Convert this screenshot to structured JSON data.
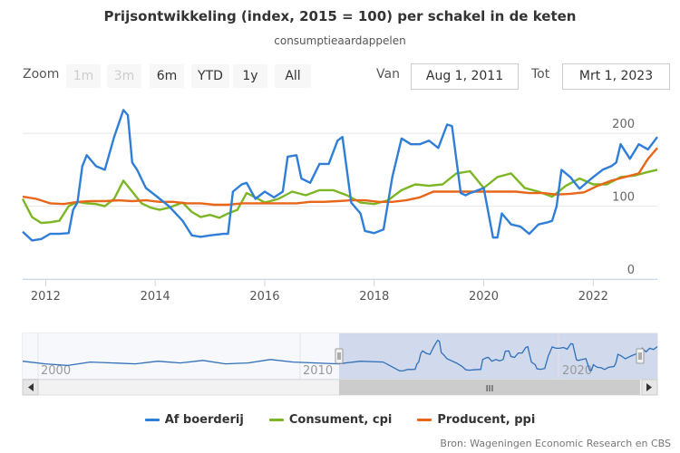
{
  "title": "Prijsontwikkeling (index, 2015 = 100) per schakel in de keten",
  "subtitle": "consumptieaardappelen",
  "range_selector": {
    "zoom_label": "Zoom",
    "buttons": [
      {
        "label": "1m",
        "enabled": false
      },
      {
        "label": "3m",
        "enabled": false
      },
      {
        "label": "6m",
        "enabled": true
      },
      {
        "label": "YTD",
        "enabled": true
      },
      {
        "label": "1y",
        "enabled": true
      },
      {
        "label": "All",
        "enabled": true
      }
    ],
    "from_label": "Van",
    "from_value": "Aug 1, 2011",
    "to_label": "Tot",
    "to_value": "Mrt 1, 2023"
  },
  "navigator": {
    "labels": [
      "2000",
      "2010",
      "2020"
    ],
    "scroll_glyph": "III"
  },
  "credits": "Bron: Wageningen Economic Research en CBS",
  "chart_data": {
    "type": "line",
    "x_type": "year",
    "xlim": [
      2011.58,
      2023.17
    ],
    "ylim": [
      0,
      240
    ],
    "yticks": [
      0,
      100,
      200
    ],
    "xticks": [
      2012,
      2014,
      2016,
      2018,
      2020,
      2022
    ],
    "grid": true,
    "legend_position": "bottom",
    "colors": {
      "accent_navigator": "#c9d3ea"
    },
    "series": [
      {
        "name": "Af boerderij",
        "color": "#2f7ed8",
        "x": [
          2011.58,
          2011.75,
          2011.92,
          2012.08,
          2012.25,
          2012.42,
          2012.5,
          2012.58,
          2012.67,
          2012.75,
          2012.92,
          2013.08,
          2013.25,
          2013.42,
          2013.5,
          2013.58,
          2013.67,
          2013.83,
          2014.0,
          2014.25,
          2014.5,
          2014.67,
          2014.83,
          2015.0,
          2015.25,
          2015.33,
          2015.42,
          2015.58,
          2015.67,
          2015.83,
          2016.0,
          2016.17,
          2016.33,
          2016.42,
          2016.58,
          2016.67,
          2016.83,
          2017.0,
          2017.17,
          2017.33,
          2017.42,
          2017.58,
          2017.75,
          2017.83,
          2018.0,
          2018.17,
          2018.33,
          2018.5,
          2018.67,
          2018.83,
          2019.0,
          2019.17,
          2019.33,
          2019.42,
          2019.58,
          2019.67,
          2019.75,
          2019.83,
          2020.0,
          2020.17,
          2020.25,
          2020.33,
          2020.5,
          2020.67,
          2020.83,
          2021.0,
          2021.17,
          2021.25,
          2021.33,
          2021.42,
          2021.58,
          2021.75,
          2021.92,
          2022.0,
          2022.17,
          2022.33,
          2022.42,
          2022.5,
          2022.67,
          2022.83,
          2023.0,
          2023.17
        ],
        "values": [
          65,
          53,
          55,
          62,
          62,
          63,
          95,
          105,
          155,
          170,
          155,
          150,
          195,
          232,
          225,
          160,
          150,
          125,
          115,
          100,
          80,
          60,
          58,
          60,
          62,
          62,
          120,
          130,
          132,
          110,
          120,
          112,
          120,
          168,
          170,
          138,
          132,
          158,
          158,
          190,
          195,
          105,
          90,
          66,
          63,
          68,
          140,
          193,
          185,
          185,
          190,
          180,
          212,
          210,
          118,
          115,
          118,
          120,
          125,
          57,
          57,
          90,
          75,
          72,
          62,
          75,
          78,
          80,
          100,
          150,
          140,
          124,
          135,
          140,
          150,
          155,
          160,
          185,
          165,
          185,
          178,
          195
        ]
      },
      {
        "name": "Consument, cpi",
        "color": "#7cb624",
        "x": [
          2011.58,
          2011.75,
          2011.92,
          2012.08,
          2012.25,
          2012.42,
          2012.58,
          2012.75,
          2012.92,
          2013.08,
          2013.25,
          2013.42,
          2013.58,
          2013.75,
          2013.92,
          2014.08,
          2014.25,
          2014.5,
          2014.67,
          2014.83,
          2015.0,
          2015.17,
          2015.33,
          2015.5,
          2015.67,
          2015.83,
          2016.0,
          2016.25,
          2016.5,
          2016.75,
          2017.0,
          2017.25,
          2017.5,
          2017.75,
          2018.0,
          2018.25,
          2018.5,
          2018.75,
          2019.0,
          2019.25,
          2019.5,
          2019.75,
          2020.0,
          2020.25,
          2020.5,
          2020.75,
          2021.0,
          2021.25,
          2021.5,
          2021.75,
          2022.0,
          2022.25,
          2022.5,
          2022.75,
          2023.0,
          2023.17
        ],
        "values": [
          110,
          85,
          77,
          78,
          80,
          100,
          106,
          104,
          103,
          100,
          110,
          135,
          120,
          104,
          98,
          95,
          98,
          105,
          92,
          85,
          88,
          84,
          90,
          95,
          118,
          112,
          105,
          110,
          120,
          115,
          122,
          122,
          115,
          105,
          103,
          108,
          122,
          130,
          128,
          130,
          145,
          148,
          125,
          140,
          145,
          125,
          120,
          113,
          128,
          138,
          130,
          130,
          140,
          142,
          147,
          150
        ]
      },
      {
        "name": "Producent, ppi",
        "color": "#e8661a",
        "x": [
          2011.58,
          2011.83,
          2012.08,
          2012.33,
          2012.58,
          2012.83,
          2013.08,
          2013.33,
          2013.58,
          2013.83,
          2014.08,
          2014.33,
          2014.58,
          2014.83,
          2015.08,
          2015.33,
          2015.58,
          2015.83,
          2016.08,
          2016.33,
          2016.58,
          2016.83,
          2017.08,
          2017.33,
          2017.58,
          2017.83,
          2018.08,
          2018.33,
          2018.58,
          2018.83,
          2019.08,
          2019.33,
          2019.58,
          2019.83,
          2020.08,
          2020.33,
          2020.58,
          2020.83,
          2021.08,
          2021.33,
          2021.58,
          2021.83,
          2022.08,
          2022.33,
          2022.58,
          2022.83,
          2023.0,
          2023.17
        ],
        "values": [
          113,
          110,
          104,
          103,
          106,
          107,
          107,
          108,
          107,
          108,
          106,
          106,
          104,
          104,
          102,
          102,
          104,
          104,
          104,
          104,
          104,
          106,
          106,
          107,
          108,
          108,
          106,
          106,
          108,
          112,
          120,
          120,
          120,
          120,
          120,
          120,
          120,
          118,
          118,
          116,
          117,
          119,
          128,
          135,
          140,
          145,
          165,
          180
        ]
      }
    ]
  }
}
